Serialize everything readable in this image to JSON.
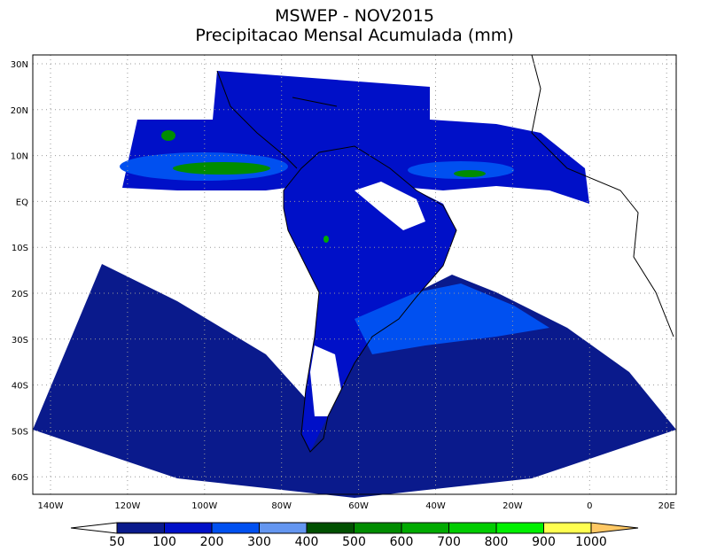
{
  "title": "MSWEP - NOV2015",
  "subtitle": "Precipitacao Mensal Acumulada (mm)",
  "lat_labels": [
    "30N",
    "20N",
    "10N",
    "EQ",
    "10S",
    "20S",
    "30S",
    "40S",
    "50S",
    "60S"
  ],
  "lon_labels": [
    "140W",
    "120W",
    "100W",
    "80W",
    "60W",
    "40W",
    "20W",
    "0",
    "20E"
  ],
  "colorbar": {
    "labels": [
      50,
      100,
      200,
      300,
      400,
      500,
      600,
      700,
      800,
      900,
      1000
    ],
    "colors": [
      "#ffffff",
      "#0a1a8c",
      "#0010c8",
      "#0050f0",
      "#6496f0",
      "#005000",
      "#008c00",
      "#00aa00",
      "#00cc00",
      "#00f000",
      "#ffff50",
      "#ffc864"
    ]
  }
}
